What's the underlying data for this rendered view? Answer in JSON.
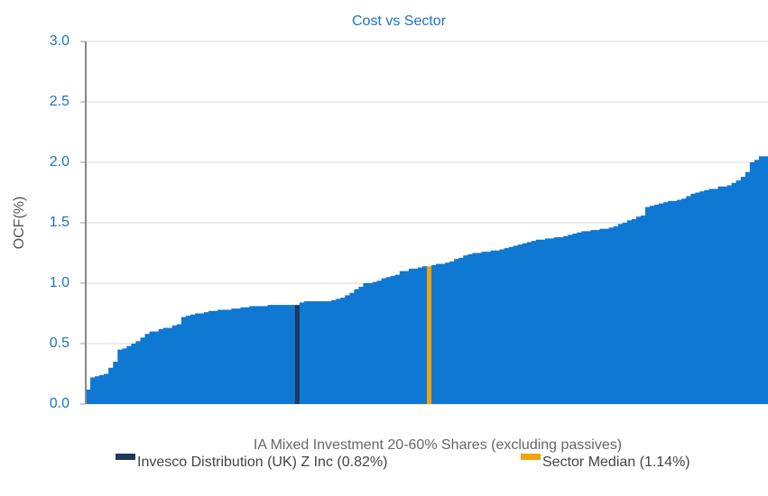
{
  "chart_data": {
    "type": "bar",
    "title": "Cost vs Sector",
    "ylabel": "OCF(%)",
    "xlabel": "IA Mixed Investment 20-60% Shares (excluding passives)",
    "values": [
      0.12,
      0.22,
      0.23,
      0.24,
      0.25,
      0.3,
      0.35,
      0.45,
      0.46,
      0.48,
      0.5,
      0.52,
      0.55,
      0.58,
      0.6,
      0.6,
      0.62,
      0.63,
      0.63,
      0.65,
      0.66,
      0.72,
      0.73,
      0.74,
      0.75,
      0.75,
      0.76,
      0.77,
      0.77,
      0.78,
      0.78,
      0.78,
      0.79,
      0.79,
      0.8,
      0.8,
      0.81,
      0.81,
      0.81,
      0.81,
      0.82,
      0.82,
      0.82,
      0.82,
      0.82,
      0.82,
      0.82,
      0.84,
      0.85,
      0.85,
      0.85,
      0.85,
      0.85,
      0.85,
      0.86,
      0.87,
      0.88,
      0.9,
      0.92,
      0.95,
      0.97,
      1.0,
      1.0,
      1.01,
      1.02,
      1.04,
      1.05,
      1.06,
      1.07,
      1.1,
      1.1,
      1.12,
      1.12,
      1.13,
      1.14,
      1.14,
      1.15,
      1.16,
      1.16,
      1.17,
      1.18,
      1.2,
      1.21,
      1.23,
      1.24,
      1.25,
      1.25,
      1.26,
      1.26,
      1.27,
      1.27,
      1.28,
      1.29,
      1.3,
      1.31,
      1.32,
      1.33,
      1.34,
      1.35,
      1.36,
      1.36,
      1.37,
      1.37,
      1.38,
      1.38,
      1.39,
      1.4,
      1.41,
      1.42,
      1.43,
      1.43,
      1.44,
      1.44,
      1.45,
      1.45,
      1.46,
      1.47,
      1.49,
      1.5,
      1.52,
      1.53,
      1.55,
      1.56,
      1.63,
      1.64,
      1.65,
      1.66,
      1.67,
      1.68,
      1.68,
      1.69,
      1.7,
      1.72,
      1.74,
      1.75,
      1.76,
      1.77,
      1.78,
      1.78,
      1.8,
      1.8,
      1.81,
      1.83,
      1.85,
      1.88,
      1.92,
      2.0,
      2.02,
      2.05,
      2.05
    ],
    "colors": [
      "#0f78d2",
      "#0f78d2",
      "#0f78d2",
      "#0f78d2",
      "#0f78d2",
      "#0f78d2",
      "#0f78d2",
      "#0f78d2",
      "#0f78d2",
      "#0f78d2",
      "#0f78d2",
      "#0f78d2",
      "#0f78d2",
      "#0f78d2",
      "#0f78d2",
      "#0f78d2",
      "#0f78d2",
      "#0f78d2",
      "#0f78d2",
      "#0f78d2",
      "#0f78d2",
      "#0f78d2",
      "#0f78d2",
      "#0f78d2",
      "#0f78d2",
      "#0f78d2",
      "#0f78d2",
      "#0f78d2",
      "#0f78d2",
      "#0f78d2",
      "#0f78d2",
      "#0f78d2",
      "#0f78d2",
      "#0f78d2",
      "#0f78d2",
      "#0f78d2",
      "#0f78d2",
      "#0f78d2",
      "#0f78d2",
      "#0f78d2",
      "#0f78d2",
      "#0f78d2",
      "#0f78d2",
      "#0f78d2",
      "#0f78d2",
      "#0f78d2",
      "#1e3a5a",
      "#0f78d2",
      "#0f78d2",
      "#0f78d2",
      "#0f78d2",
      "#0f78d2",
      "#0f78d2",
      "#0f78d2",
      "#0f78d2",
      "#0f78d2",
      "#0f78d2",
      "#0f78d2",
      "#0f78d2",
      "#0f78d2",
      "#0f78d2",
      "#0f78d2",
      "#0f78d2",
      "#0f78d2",
      "#0f78d2",
      "#0f78d2",
      "#0f78d2",
      "#0f78d2",
      "#0f78d2",
      "#0f78d2",
      "#0f78d2",
      "#0f78d2",
      "#0f78d2",
      "#0f78d2",
      "#0f78d2",
      "#f0a30a",
      "#0f78d2",
      "#0f78d2",
      "#0f78d2",
      "#0f78d2",
      "#0f78d2",
      "#0f78d2",
      "#0f78d2",
      "#0f78d2",
      "#0f78d2",
      "#0f78d2",
      "#0f78d2",
      "#0f78d2",
      "#0f78d2",
      "#0f78d2",
      "#0f78d2",
      "#0f78d2",
      "#0f78d2",
      "#0f78d2",
      "#0f78d2",
      "#0f78d2",
      "#0f78d2",
      "#0f78d2",
      "#0f78d2",
      "#0f78d2",
      "#0f78d2",
      "#0f78d2",
      "#0f78d2",
      "#0f78d2",
      "#0f78d2",
      "#0f78d2",
      "#0f78d2",
      "#0f78d2",
      "#0f78d2",
      "#0f78d2",
      "#0f78d2",
      "#0f78d2",
      "#0f78d2",
      "#0f78d2",
      "#0f78d2",
      "#0f78d2",
      "#0f78d2",
      "#0f78d2",
      "#0f78d2",
      "#0f78d2",
      "#0f78d2",
      "#0f78d2",
      "#0f78d2",
      "#0f78d2",
      "#0f78d2",
      "#0f78d2",
      "#0f78d2",
      "#0f78d2",
      "#0f78d2",
      "#0f78d2",
      "#0f78d2",
      "#0f78d2",
      "#0f78d2",
      "#0f78d2",
      "#0f78d2",
      "#0f78d2",
      "#0f78d2",
      "#0f78d2",
      "#0f78d2",
      "#0f78d2",
      "#0f78d2",
      "#0f78d2",
      "#0f78d2",
      "#0f78d2",
      "#0f78d2",
      "#0f78d2",
      "#0f78d2",
      "#0f78d2",
      "#0f78d2",
      "#0f78d2"
    ],
    "legend": [
      {
        "name": "Invesco Distribution (UK) Z Inc (0.82%)",
        "color": "#1e3a5a"
      },
      {
        "name": "Sector Median (1.14%)",
        "color": "#f0a30a"
      }
    ],
    "ylim": [
      0,
      3
    ],
    "yticks": [
      {
        "value": 0,
        "label": "0.0"
      },
      0.5,
      {
        "value": 1,
        "label": "1.0"
      },
      1.5,
      {
        "value": 2,
        "label": "2.0"
      },
      2.5,
      {
        "value": 3,
        "label": "3.0"
      }
    ],
    "grid": true
  }
}
